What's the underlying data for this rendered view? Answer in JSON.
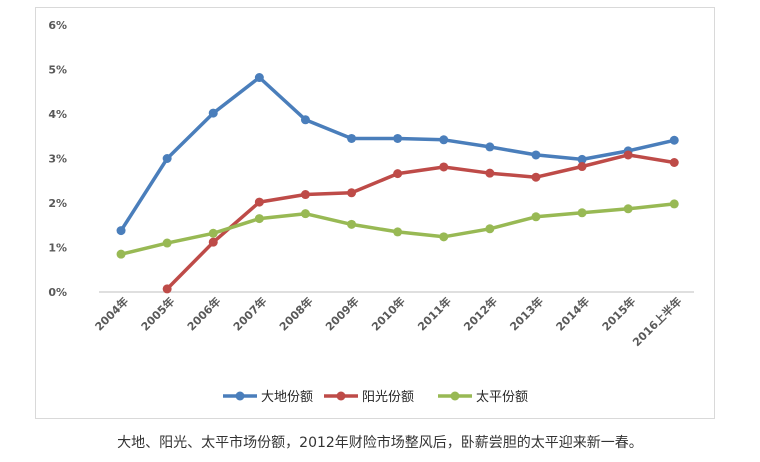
{
  "chart_data": {
    "type": "line",
    "categories": [
      "2004年",
      "2005年",
      "2006年",
      "2007年",
      "2008年",
      "2009年",
      "2010年",
      "2011年",
      "2012年",
      "2013年",
      "2014年",
      "2015年",
      "2016上半年"
    ],
    "ylim": [
      0,
      6
    ],
    "yticks": [
      "0%",
      "1%",
      "2%",
      "3%",
      "4%",
      "5%",
      "6%"
    ],
    "grid": false,
    "legend_position": "bottom",
    "series": [
      {
        "name": "大地份额",
        "color": "#4a7ebb",
        "values": [
          1.38,
          3.0,
          4.02,
          4.82,
          3.87,
          3.45,
          3.45,
          3.42,
          3.26,
          3.08,
          2.98,
          3.17,
          3.41
        ]
      },
      {
        "name": "阳光份额",
        "color": "#be4b48",
        "values": [
          null,
          0.07,
          1.12,
          2.02,
          2.19,
          2.23,
          2.66,
          2.81,
          2.67,
          2.58,
          2.82,
          3.08,
          2.91
        ]
      },
      {
        "name": "太平份额",
        "color": "#98b954",
        "values": [
          0.85,
          1.1,
          1.32,
          1.65,
          1.76,
          1.52,
          1.35,
          1.24,
          1.42,
          1.69,
          1.78,
          1.87,
          1.98
        ]
      }
    ]
  },
  "caption": "大地、阳光、太平市场份额，2012年财险市场整风后，卧薪尝胆的太平迎来新一春。"
}
